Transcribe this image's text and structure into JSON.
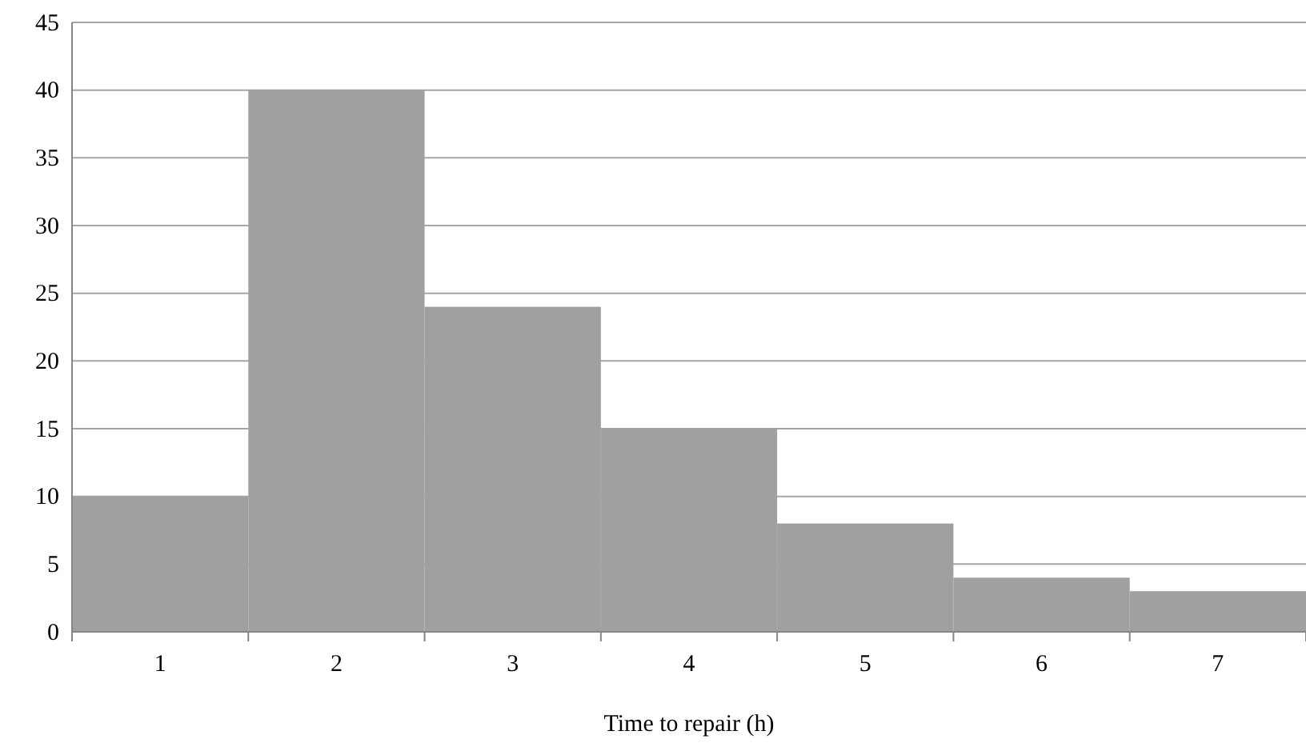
{
  "chart_data": {
    "type": "bar",
    "xlabel": "Time to repair (h)",
    "categories": [
      "1",
      "2",
      "3",
      "4",
      "5",
      "6",
      "7"
    ],
    "values": [
      10,
      40,
      24,
      15,
      8,
      4,
      3
    ],
    "color": "#a0a0a0",
    "ylim": [
      0,
      45
    ],
    "yticks": [
      0,
      5,
      10,
      15,
      20,
      25,
      30,
      35,
      40,
      45
    ],
    "grid": "y"
  }
}
